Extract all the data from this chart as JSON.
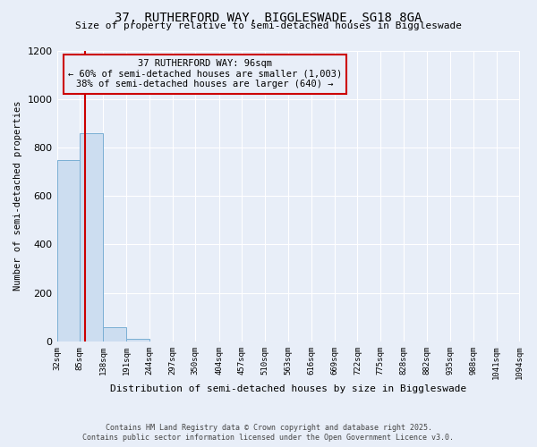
{
  "title": "37, RUTHERFORD WAY, BIGGLESWADE, SG18 8GA",
  "subtitle": "Size of property relative to semi-detached houses in Biggleswade",
  "xlabel": "Distribution of semi-detached houses by size in Biggleswade",
  "ylabel": "Number of semi-detached properties",
  "property_size": 96,
  "annotation_title": "37 RUTHERFORD WAY: 96sqm",
  "annotation_line1": "← 60% of semi-detached houses are smaller (1,003)",
  "annotation_line2": "38% of semi-detached houses are larger (640) →",
  "bin_edges": [
    32,
    85,
    138,
    191,
    244,
    297,
    350,
    404,
    457,
    510,
    563,
    616,
    669,
    722,
    775,
    828,
    882,
    935,
    988,
    1041,
    1094
  ],
  "bar_heights": [
    750,
    860,
    60,
    10,
    0,
    0,
    0,
    0,
    0,
    0,
    0,
    0,
    0,
    0,
    0,
    0,
    0,
    0,
    0,
    0
  ],
  "bar_color": "#ccddf0",
  "bar_edge_color": "#7aafd4",
  "red_line_color": "#cc0000",
  "annotation_box_color": "#cc0000",
  "background_color": "#e8eef8",
  "grid_color": "#ffffff",
  "ylim": [
    0,
    1200
  ],
  "yticks": [
    0,
    200,
    400,
    600,
    800,
    1000,
    1200
  ],
  "footer_line1": "Contains HM Land Registry data © Crown copyright and database right 2025.",
  "footer_line2": "Contains public sector information licensed under the Open Government Licence v3.0."
}
